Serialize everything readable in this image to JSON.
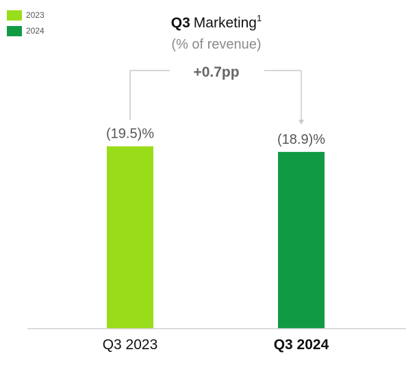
{
  "legend": [
    {
      "label": "2023",
      "color": "#99dd1a"
    },
    {
      "label": "2024",
      "color": "#119a44"
    }
  ],
  "title": {
    "bold": "Q3",
    "normal": "Marketing",
    "superscript": "1"
  },
  "subtitle": "(% of revenue)",
  "chart_data": {
    "type": "bar",
    "categories": [
      "Q3 2023",
      "Q3 2024"
    ],
    "values": [
      19.5,
      18.9
    ],
    "data_labels": [
      "(19.5)%",
      "(18.9)%"
    ],
    "colors": [
      "#99dd1a",
      "#119a44"
    ],
    "bold_categories": [
      false,
      true
    ],
    "annotation": "+0.7pp",
    "title": "Q3 Marketing",
    "ylabel": "% of revenue",
    "ylim": [
      0,
      20.5
    ],
    "grid": false,
    "legend_position": "top-left"
  }
}
